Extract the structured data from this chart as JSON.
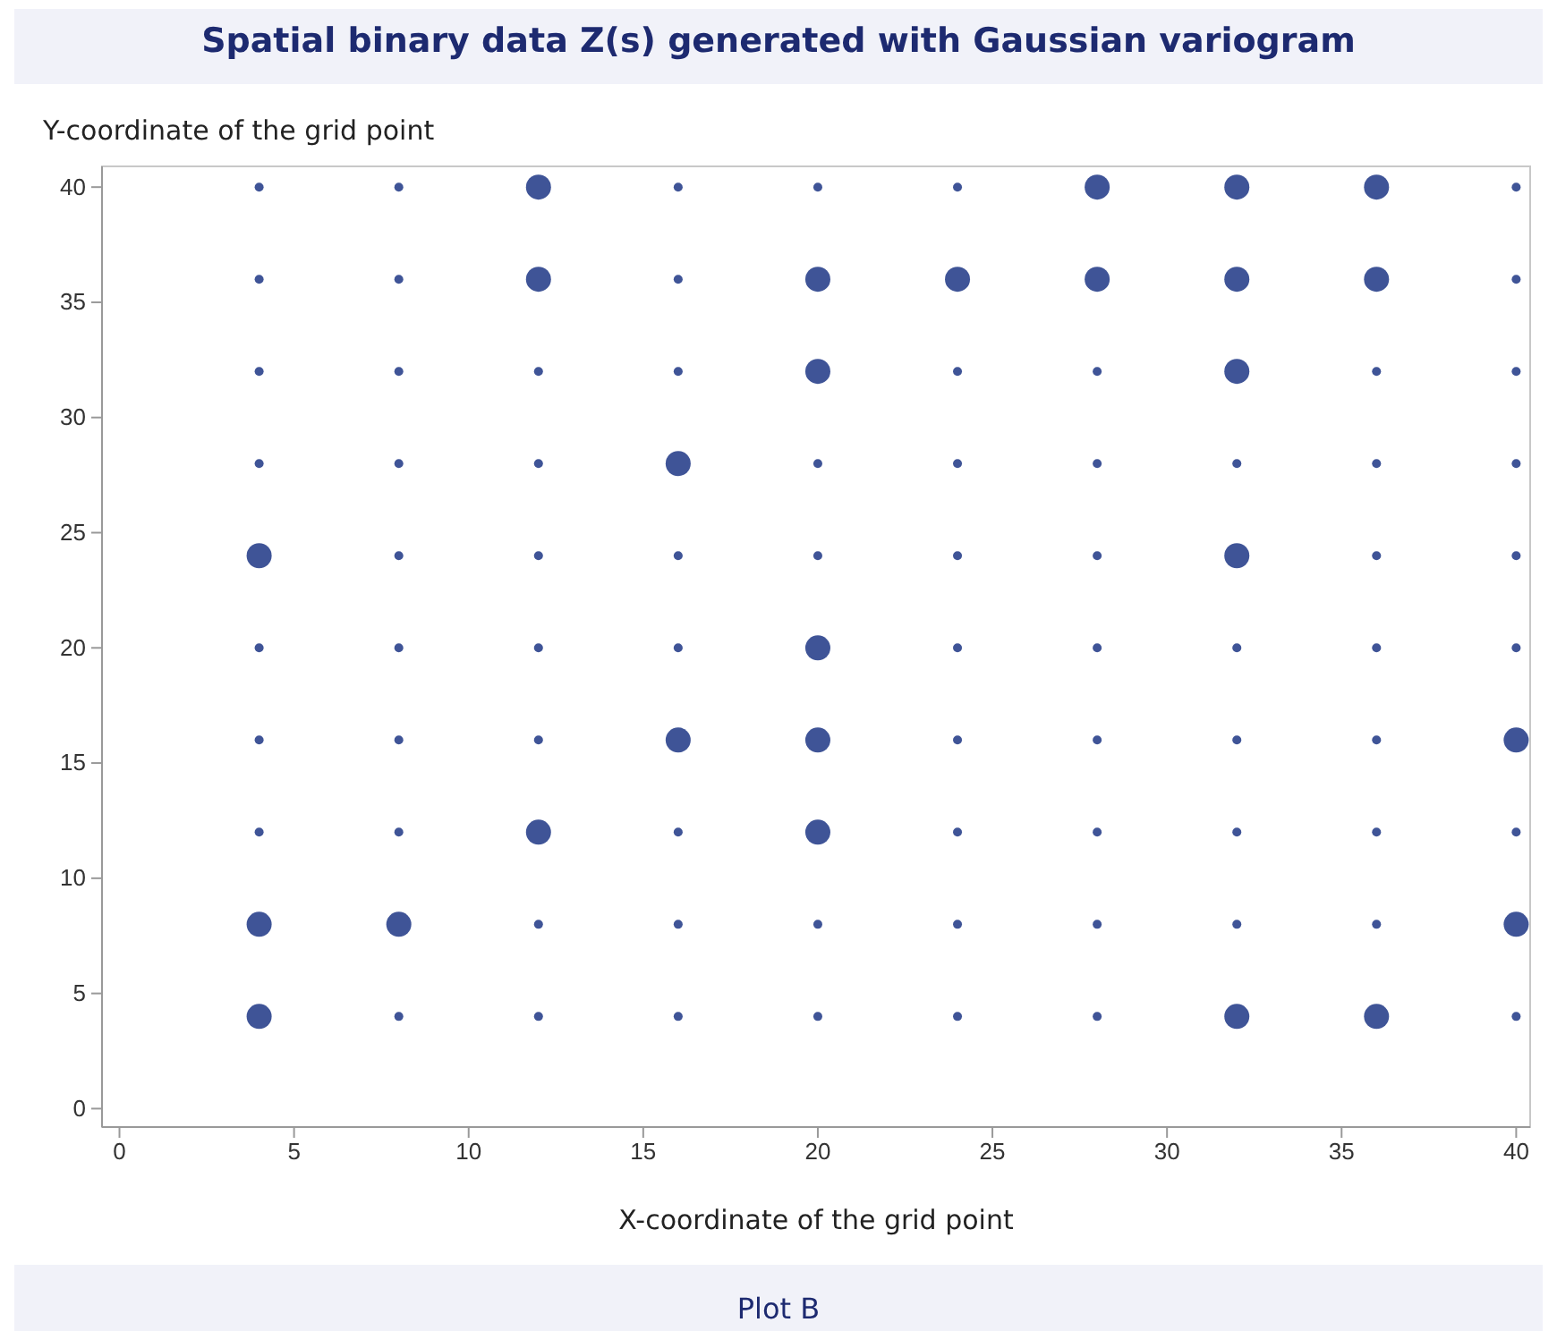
{
  "chart_data": {
    "type": "scatter",
    "title": "Spatial binary data Z(s) generated with Gaussian variogram",
    "xlabel": "X-coordinate of the grid point",
    "ylabel": "Y-coordinate of the grid point",
    "annotations": [
      "Plot B"
    ],
    "xlim": [
      -0.5,
      40.4
    ],
    "ylim": [
      -0.8,
      40.9
    ],
    "xticks": [
      0,
      5,
      10,
      15,
      20,
      25,
      30,
      35,
      40
    ],
    "yticks": [
      0,
      5,
      10,
      15,
      20,
      25,
      30,
      35,
      40
    ],
    "marker": "circle",
    "series": [
      {
        "color": "#3f5497",
        "x": [
          12,
          28,
          32,
          36,
          12,
          20,
          24,
          28,
          32,
          36,
          20,
          32,
          16,
          4,
          32,
          20,
          16,
          20,
          40,
          12,
          20,
          4,
          8,
          40,
          4,
          32,
          36
        ],
        "values": [
          40,
          40,
          40,
          40,
          36,
          36,
          36,
          36,
          36,
          36,
          32,
          32,
          28,
          24,
          24,
          20,
          16,
          16,
          16,
          12,
          12,
          8,
          8,
          8,
          4,
          4,
          4
        ]
      },
      {
        "color": "#3f5497",
        "x": [
          4,
          8,
          16,
          20,
          24,
          40,
          4,
          8,
          16,
          40,
          4,
          8,
          12,
          16,
          24,
          28,
          36,
          40,
          4,
          8,
          12,
          20,
          24,
          28,
          32,
          36,
          40,
          8,
          12,
          16,
          20,
          24,
          28,
          36,
          40,
          4,
          8,
          12,
          16,
          24,
          28,
          32,
          36,
          40,
          4,
          8,
          12,
          24,
          28,
          32,
          36,
          4,
          8,
          16,
          24,
          28,
          32,
          36,
          40,
          12,
          16,
          20,
          24,
          28,
          32,
          36,
          8,
          12,
          16,
          20,
          24,
          28,
          40
        ],
        "values": [
          40,
          40,
          40,
          40,
          40,
          40,
          36,
          36,
          36,
          36,
          32,
          32,
          32,
          32,
          32,
          32,
          32,
          32,
          28,
          28,
          28,
          28,
          28,
          28,
          28,
          28,
          28,
          24,
          24,
          24,
          24,
          24,
          24,
          24,
          24,
          20,
          20,
          20,
          20,
          20,
          20,
          20,
          20,
          20,
          16,
          16,
          16,
          16,
          16,
          16,
          16,
          12,
          12,
          12,
          12,
          12,
          12,
          12,
          12,
          8,
          8,
          8,
          8,
          8,
          8,
          8,
          4,
          4,
          4,
          4,
          4,
          4,
          4
        ]
      }
    ]
  }
}
